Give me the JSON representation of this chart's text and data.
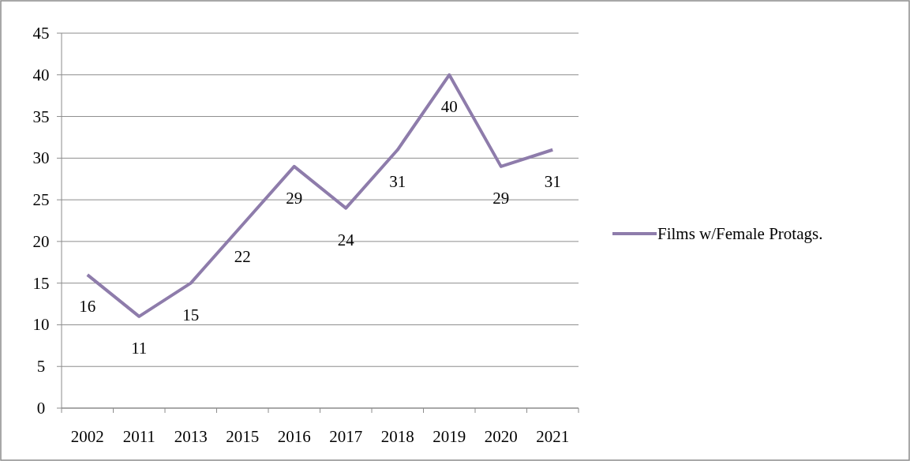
{
  "chart_data": {
    "type": "line",
    "categories": [
      "2002",
      "2011",
      "2013",
      "2015",
      "2016",
      "2017",
      "2018",
      "2019",
      "2020",
      "2021"
    ],
    "series": [
      {
        "name": "Films w/Female Protags.",
        "color": "#8e7cab",
        "values": [
          16,
          11,
          15,
          22,
          29,
          24,
          31,
          40,
          29,
          31
        ]
      }
    ],
    "ylim": [
      0,
      45
    ],
    "yticks": [
      0,
      5,
      10,
      15,
      20,
      25,
      30,
      35,
      40,
      45
    ],
    "grid": "y",
    "legend": "right",
    "data_labels": true,
    "marker": "none",
    "line_style": "solid"
  }
}
